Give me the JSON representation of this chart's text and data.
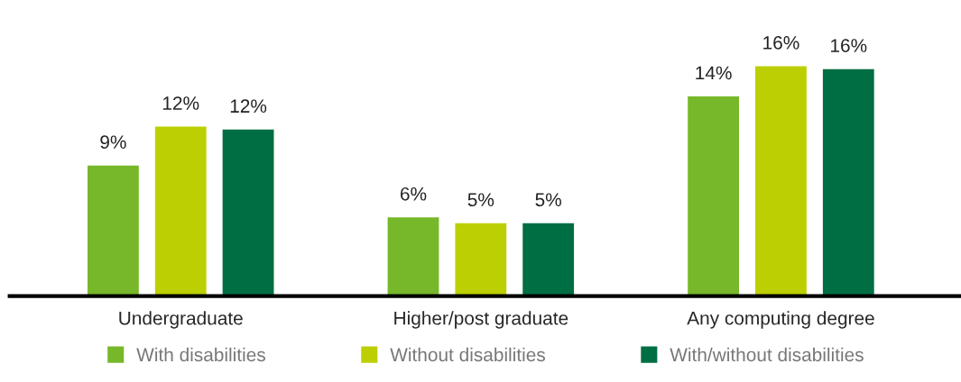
{
  "chart_data": {
    "type": "bar",
    "categories": [
      "Undergraduate",
      "Higher/post graduate",
      "Any computing degree"
    ],
    "series": [
      {
        "name": "With disabilities",
        "color": "#77b82a",
        "values": [
          9.1,
          5.5,
          13.9
        ],
        "value_labels": [
          "9%",
          "6%",
          "14%"
        ]
      },
      {
        "name": "Without disabilities",
        "color": "#bccf02",
        "values": [
          11.8,
          5.1,
          16
        ],
        "value_labels": [
          "12%",
          "5%",
          "16%"
        ]
      },
      {
        "name": "With/without disabilities",
        "color": "#006e43",
        "values": [
          11.6,
          5.1,
          15.8
        ],
        "value_labels": [
          "12%",
          "5%",
          "16%"
        ]
      }
    ],
    "legend": "bottom",
    "grid": false
  }
}
